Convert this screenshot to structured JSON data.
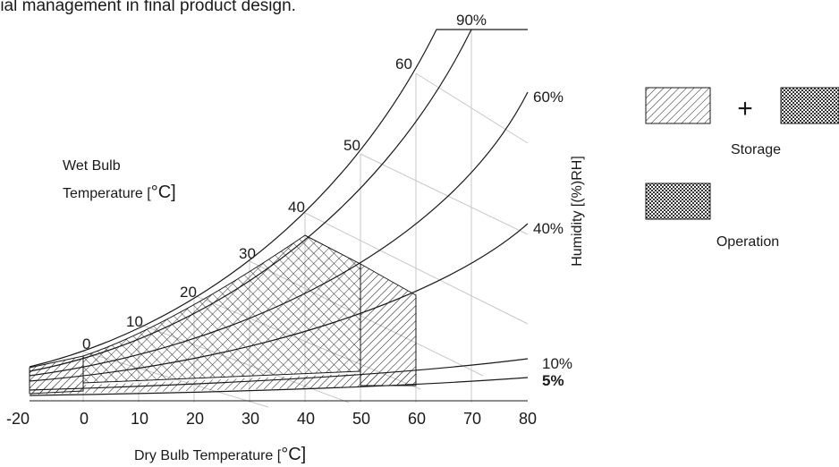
{
  "caption_fragment": "rial management in final product design.",
  "x_axis": {
    "label_prefix": "Dry Bulb Temperature [",
    "label_unit": "°C",
    "label_suffix": "]",
    "ticks": [
      "-20",
      "0",
      "10",
      "20",
      "30",
      "40",
      "50",
      "60",
      "70",
      "80"
    ]
  },
  "y_axis_label": "Humidity [(%)RH]",
  "wet_bulb": {
    "title_line1": "Wet Bulb",
    "title_line2_prefix": "Temperature [",
    "title_line2_unit": "°C",
    "title_line2_suffix": "]",
    "temps": [
      "0",
      "10",
      "20",
      "30",
      "40",
      "50",
      "60"
    ]
  },
  "rh_curves": [
    "90%",
    "60%",
    "40%",
    "10%",
    "5%"
  ],
  "legend": {
    "plus_symbol": "+",
    "storage_label": "Storage",
    "operation_label": "Operation"
  },
  "regions": {
    "storage": {
      "temp_range_c": [
        -20,
        60
      ],
      "rh_range_pct": [
        5,
        90
      ]
    },
    "operation": {
      "temp_range_c": [
        0,
        40
      ],
      "rh_range_pct": [
        10,
        90
      ],
      "max_upper_temp_c": 60
    }
  }
}
